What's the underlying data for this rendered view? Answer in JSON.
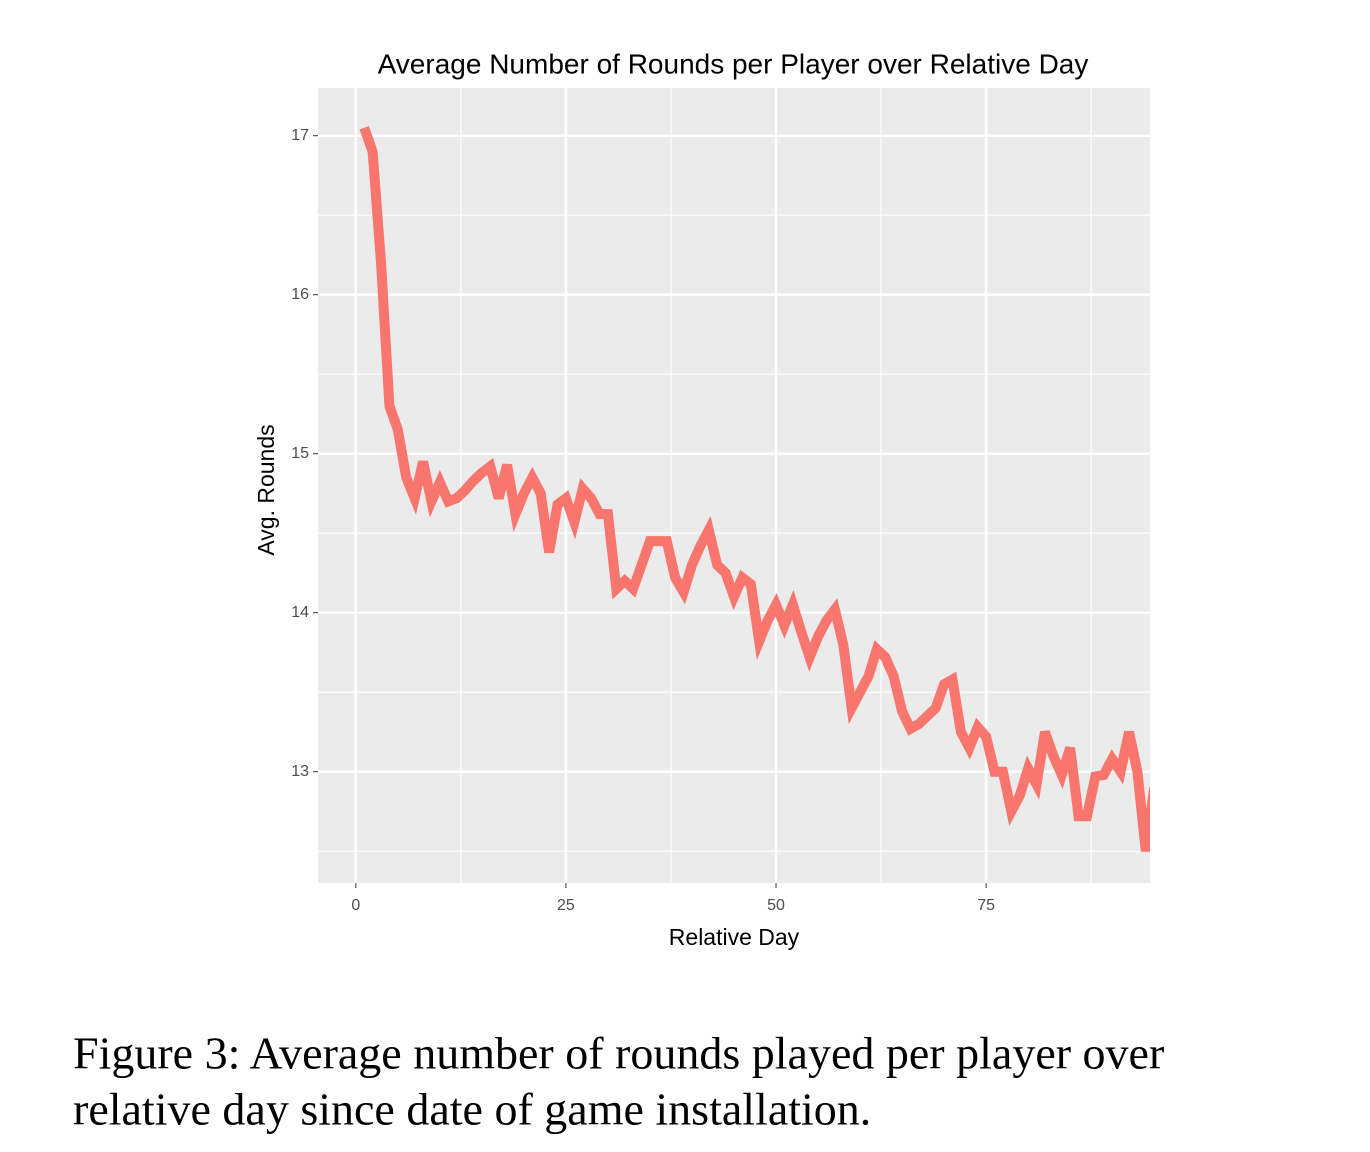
{
  "chart_data": {
    "type": "line",
    "title": "Average Number of Rounds per Player over Relative Day",
    "x_label": "Relative Day",
    "y_label": "Avg. Rounds",
    "x": [
      1,
      2,
      3,
      4,
      5,
      6,
      7,
      8,
      9,
      10,
      11,
      12,
      13,
      14,
      15,
      16,
      17,
      18,
      19,
      20,
      21,
      22,
      23,
      24,
      25,
      26,
      27,
      28,
      29,
      30,
      31,
      32,
      33,
      34,
      35,
      36,
      37,
      38,
      39,
      40,
      41,
      42,
      43,
      44,
      45,
      46,
      47,
      48,
      49,
      50,
      51,
      52,
      53,
      54,
      55,
      56,
      57,
      58,
      59,
      60,
      61,
      62,
      63,
      64,
      65,
      66,
      67,
      68,
      69,
      70,
      71,
      72,
      73,
      74,
      75,
      76,
      77,
      78,
      79,
      80,
      81,
      82,
      83,
      84,
      85,
      86,
      87,
      88,
      89,
      90,
      91,
      92,
      93,
      94,
      95
    ],
    "series": [
      {
        "name": "Avg. Rounds",
        "color": "#F8766D",
        "values": [
          17.05,
          16.9,
          16.2,
          15.3,
          15.15,
          14.85,
          14.72,
          14.95,
          14.7,
          14.82,
          14.7,
          14.72,
          14.77,
          14.83,
          14.88,
          14.92,
          14.72,
          14.93,
          14.62,
          14.75,
          14.85,
          14.75,
          14.38,
          14.68,
          14.72,
          14.57,
          14.78,
          14.72,
          14.62,
          14.62,
          14.15,
          14.2,
          14.15,
          14.3,
          14.45,
          14.45,
          14.45,
          14.22,
          14.13,
          14.3,
          14.42,
          14.52,
          14.3,
          14.25,
          14.1,
          14.22,
          14.18,
          13.82,
          13.95,
          14.05,
          13.92,
          14.05,
          13.88,
          13.72,
          13.85,
          13.95,
          14.02,
          13.8,
          13.4,
          13.5,
          13.6,
          13.77,
          13.72,
          13.6,
          13.38,
          13.27,
          13.3,
          13.35,
          13.4,
          13.55,
          13.58,
          13.25,
          13.15,
          13.28,
          13.22,
          13.0,
          13.0,
          12.75,
          12.85,
          13.02,
          12.92,
          13.25,
          13.1,
          12.98,
          13.15,
          12.72,
          12.72,
          12.97,
          12.98,
          13.08,
          13.0,
          13.25,
          13.0,
          12.5,
          12.9
        ]
      }
    ],
    "xlim": [
      -4.5,
      94.5
    ],
    "xticks": [
      0,
      25,
      50,
      75
    ],
    "ylim": [
      12.3,
      17.3
    ],
    "yticks": [
      13,
      14,
      15,
      16,
      17
    ],
    "grid": true,
    "minor_grid": true
  },
  "caption": [
    "Figure 3: Average number of rounds played per player over",
    "relative day since date of game installation."
  ]
}
